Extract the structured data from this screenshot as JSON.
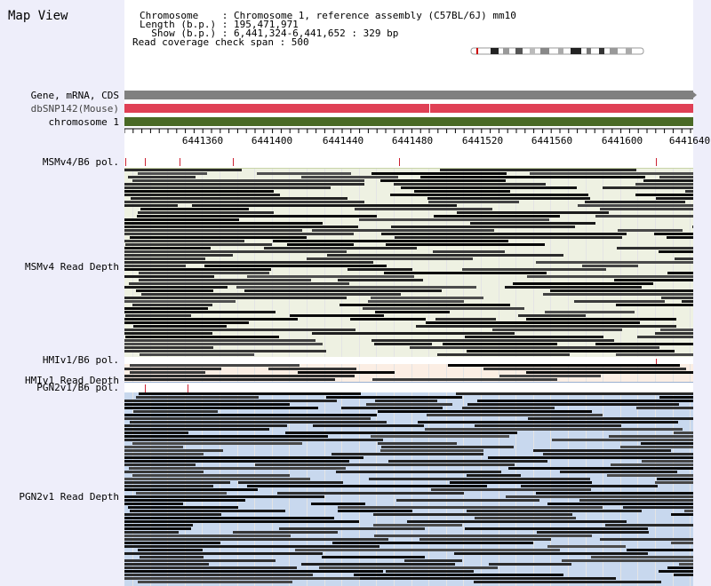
{
  "title": "Map View",
  "info": {
    "chromosome": "Chromosome    : Chromosome 1, reference assembly (C57BL/6J) mm10",
    "length": "Length (b.p.) : 195,471,971",
    "show": "  Show (b.p.) : 6,441,324-6,441,652 : 329 bp",
    "span": "Read coverage check span : 500"
  },
  "tracks": {
    "gene": "Gene, mRNA, CDS",
    "dbsnp": "dbSNP142(Mouse)",
    "chromosome": "chromosome 1"
  },
  "colors": {
    "gene": "#808080",
    "dbsnp": "#e04055",
    "chromosome": "#4a6a25",
    "msm_bg": "#eef1e2",
    "hmi_bg": "#fbeee4",
    "pgn_bg": "#c8d8ee"
  },
  "axis": {
    "ticks": [
      "6441360",
      "6441400",
      "6441440",
      "6441480",
      "6441520",
      "6441560",
      "6441600",
      "6441640"
    ]
  },
  "sections": {
    "msm_pol": "MSMv4/B6 pol.",
    "msm_depth": "MSMv4 Read Depth",
    "hmi_pol": "HMIv1/B6 pol.",
    "hmi_depth": "HMIv1 Read Depth",
    "pgn_pol": "PGN2v1/B6 pol.",
    "pgn_depth": "PGN2v1 Read Depth"
  }
}
